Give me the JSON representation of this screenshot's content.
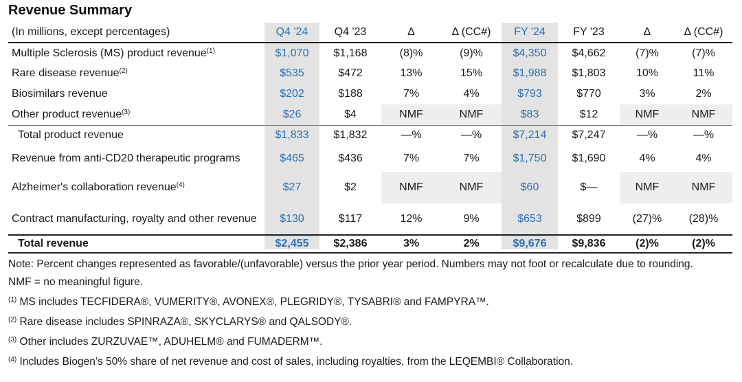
{
  "title": "Revenue Summary",
  "colors": {
    "accent": "#2c6fb3",
    "shade": "#e3e3e3"
  },
  "table": {
    "header": {
      "label": "(In millions, except percentages)",
      "cols": [
        "Q4 '24",
        "Q4 '23",
        "Δ",
        "Δ (CC#)",
        "FY '24",
        "FY '23",
        "Δ",
        "Δ (CC#)"
      ]
    },
    "rows": [
      {
        "label": "Multiple Sclerosis (MS) product revenue",
        "sup": "(1)",
        "vals": [
          "$1,070",
          "$1,168",
          "(8)%",
          "(9)%",
          "$4,350",
          "$4,662",
          "(7)%",
          "(7)%"
        ]
      },
      {
        "label": "Rare disease revenue",
        "sup": "(2)",
        "vals": [
          "$535",
          "$472",
          "13%",
          "15%",
          "$1,988",
          "$1,803",
          "10%",
          "11%"
        ]
      },
      {
        "label": "Biosimilars revenue",
        "sup": "",
        "vals": [
          "$202",
          "$188",
          "7%",
          "4%",
          "$793",
          "$770",
          "3%",
          "2%"
        ]
      },
      {
        "label": "Other product revenue",
        "sup": "(3)",
        "vals": [
          "$26",
          "$4",
          "NMF",
          "NMF",
          "$83",
          "$12",
          "NMF",
          "NMF"
        ]
      },
      {
        "label": "Total product revenue",
        "sup": "",
        "vals": [
          "$1,833",
          "$1,832",
          "—%",
          "—%",
          "$7,214",
          "$7,247",
          "—%",
          "—%"
        ]
      },
      {
        "label": "Revenue from anti-CD20 therapeutic programs",
        "sup": "",
        "vals": [
          "$465",
          "$436",
          "7%",
          "7%",
          "$1,750",
          "$1,690",
          "4%",
          "4%"
        ]
      },
      {
        "label": "Alzheimer's collaboration revenue",
        "sup": "(4)",
        "vals": [
          "$27",
          "$2",
          "NMF",
          "NMF",
          "$60",
          "$—",
          "NMF",
          "NMF"
        ]
      },
      {
        "label": "Contract manufacturing, royalty and other revenue",
        "sup": "",
        "vals": [
          "$130",
          "$117",
          "12%",
          "9%",
          "$653",
          "$899",
          "(27)%",
          "(28)%"
        ]
      },
      {
        "label": "Total revenue",
        "sup": "",
        "vals": [
          "$2,455",
          "$2,386",
          "3%",
          "2%",
          "$9,676",
          "$9,836",
          "(2)%",
          "(2)%"
        ]
      }
    ]
  },
  "notes": {
    "note": "Note: Percent changes represented as favorable/(unfavorable) versus the prior year period. Numbers may not foot or recalculate due to rounding.",
    "nmf": "NMF = no meaningful figure.",
    "fn1_mark": "(1)",
    "fn1": " MS includes TECFIDERA®, VUMERITY®, AVONEX®, PLEGRIDY®, TYSABRI® and FAMPYRA™.",
    "fn2_mark": "(2)",
    "fn2": " Rare disease includes SPINRAZA®, SKYCLARYS® and QALSODY®.",
    "fn3_mark": "(3)",
    "fn3": " Other includes ZURZUVAE™, ADUHELM® and FUMADERM™.",
    "fn4_mark": "(4)",
    "fn4": " Includes Biogen’s 50% share of net revenue and cost of sales, including royalties, from the LEQEMBI® Collaboration."
  }
}
